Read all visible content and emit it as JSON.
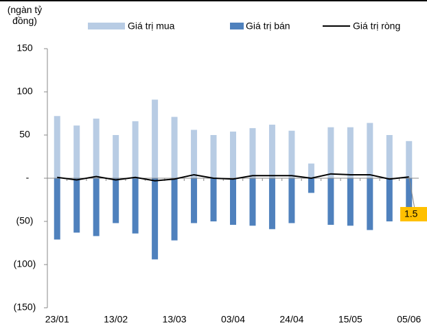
{
  "chart_data": {
    "type": "bar",
    "ylabel": "(ngàn tỷ đồng)",
    "categories": [
      "23/01",
      null,
      null,
      "13/02",
      null,
      null,
      "13/03",
      null,
      null,
      "03/04",
      null,
      null,
      "24/04",
      null,
      null,
      "15/05",
      null,
      null,
      "05/06"
    ],
    "series": [
      {
        "name": "Giá trị mua",
        "color": "#b8cce4",
        "type": "bar",
        "values": [
          72,
          61,
          69,
          50,
          66,
          91,
          71,
          56,
          50,
          54,
          58,
          62,
          55,
          17,
          59,
          59,
          64,
          50,
          43
        ]
      },
      {
        "name": "Giá trị bán",
        "color": "#4f81bd",
        "type": "bar",
        "values": [
          -71,
          -63,
          -67,
          -52,
          -64,
          -94,
          -72,
          -52,
          -50,
          -54,
          -55,
          -59,
          -52,
          -17,
          -54,
          -55,
          -60,
          -50,
          -41
        ]
      },
      {
        "name": "Giá trị ròng",
        "color": "#000000",
        "type": "line",
        "values": [
          1,
          -2,
          2,
          -2,
          1,
          -3,
          -1,
          4,
          0,
          -1,
          3,
          3,
          3,
          0,
          5,
          4,
          4,
          -1,
          1.5
        ]
      }
    ],
    "ylim": [
      -150,
      150
    ],
    "yticks": [
      150,
      100,
      50,
      {
        "value": 0,
        "label": "-"
      },
      {
        "value": -50,
        "label": "(50)"
      },
      {
        "value": -100,
        "label": "(100)"
      },
      {
        "value": -150,
        "label": "(150)"
      }
    ],
    "legend": "top",
    "label_color": "#ffc000"
  }
}
